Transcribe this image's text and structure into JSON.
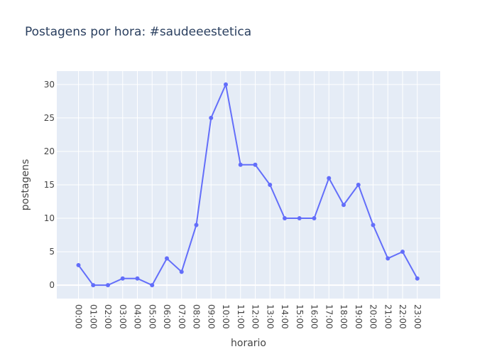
{
  "chart_data": {
    "type": "line",
    "title": "Postagens por hora: #saudeeestetica",
    "xlabel": "horario",
    "ylabel": "postagens",
    "categories": [
      "00:00",
      "01:00",
      "02:00",
      "03:00",
      "04:00",
      "05:00",
      "06:00",
      "07:00",
      "08:00",
      "09:00",
      "10:00",
      "11:00",
      "12:00",
      "13:00",
      "14:00",
      "15:00",
      "16:00",
      "17:00",
      "18:00",
      "19:00",
      "20:00",
      "21:00",
      "22:00",
      "23:00"
    ],
    "series": [
      {
        "values": [
          3,
          0,
          0,
          1,
          1,
          0,
          4,
          2,
          9,
          25,
          30,
          18,
          18,
          15,
          10,
          10,
          10,
          16,
          12,
          15,
          9,
          4,
          5,
          1
        ]
      }
    ],
    "ylim": [
      -2,
      32
    ],
    "yticks": [
      0,
      5,
      10,
      15,
      20,
      25,
      30
    ],
    "grid": true,
    "colors": {
      "line": "#636efa",
      "plot_bg": "#e5ecf6",
      "grid": "#ffffff"
    }
  }
}
